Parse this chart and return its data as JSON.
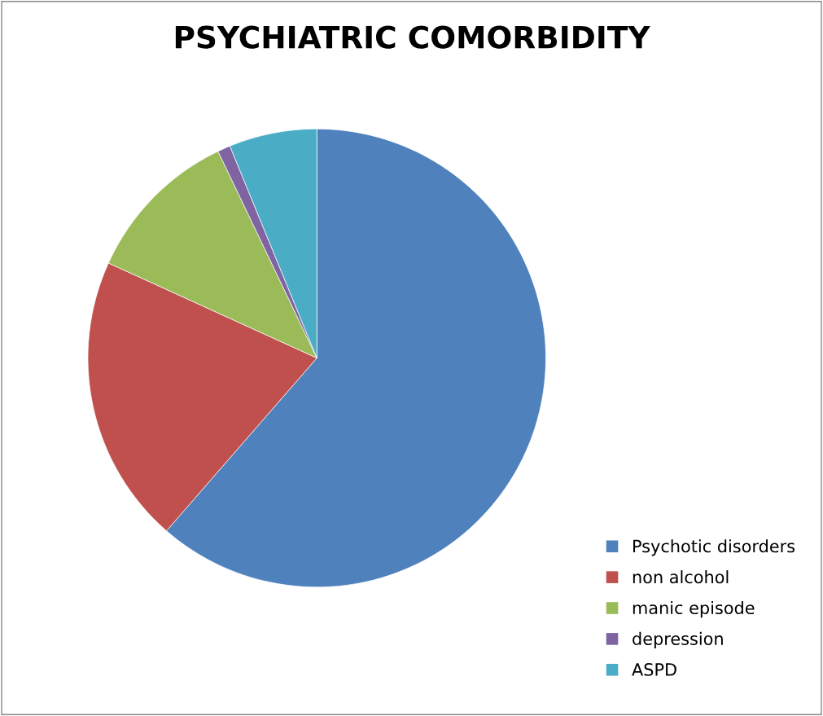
{
  "chart_data": {
    "type": "pie",
    "title": "PSYCHIATRIC COMORBIDITY",
    "categories": [
      "Psychotic disorders",
      "non alcohol",
      "manic episode",
      "depression",
      "ASPD"
    ],
    "values": [
      61.4,
      20.4,
      11.1,
      0.9,
      6.2
    ],
    "colors": [
      "#4f81bd",
      "#c0504d",
      "#9bbb59",
      "#8064a2",
      "#4bacc6"
    ],
    "legend": "bottom right"
  }
}
